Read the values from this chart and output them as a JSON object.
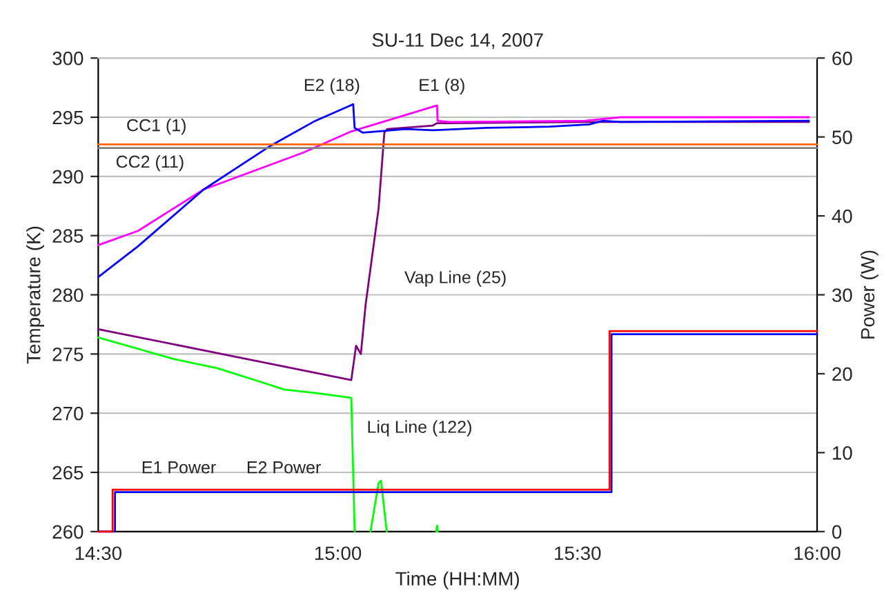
{
  "chart_data": {
    "type": "line",
    "title": "SU-11 Dec 14, 2007",
    "xlabel": "Time (HH:MM)",
    "ylabel": "Temperature (K)",
    "y2label": "Power (W)",
    "xlim": [
      14.5,
      16.0
    ],
    "xticks": [
      {
        "value": 14.5,
        "label": "14:30"
      },
      {
        "value": 15.0,
        "label": "15:00"
      },
      {
        "value": 15.5,
        "label": "15:30"
      },
      {
        "value": 16.0,
        "label": "16:00"
      }
    ],
    "ylim": [
      260,
      300
    ],
    "yticks": [
      260,
      265,
      270,
      275,
      280,
      285,
      290,
      295,
      300
    ],
    "y2lim": [
      0,
      60
    ],
    "y2ticks": [
      0,
      10,
      20,
      30,
      40,
      50,
      60
    ],
    "grid": "y",
    "legend": false,
    "marker": "none",
    "line_style": "solid",
    "series": [
      {
        "name": "CC1 (1)",
        "color": "#ff6600",
        "x": [
          14.5,
          14.75,
          15.0,
          15.25,
          15.5,
          15.75,
          16.0
        ],
        "values": [
          292.7,
          292.7,
          292.7,
          292.7,
          292.7,
          292.7,
          292.7
        ]
      },
      {
        "name": "CC2 (11)",
        "color": "#808080",
        "x": [
          14.5,
          14.75,
          15.0,
          15.25,
          15.5,
          15.75,
          16.0
        ],
        "values": [
          292.4,
          292.4,
          292.4,
          292.4,
          292.4,
          292.4,
          292.4
        ]
      },
      {
        "name": "E2 (18)",
        "color": "#0000ff",
        "x": [
          14.5,
          14.503,
          14.583,
          14.72,
          14.86,
          14.953,
          15.032,
          15.035,
          15.052,
          15.142,
          15.198,
          15.31,
          15.442,
          15.525,
          15.553,
          15.59,
          15.983
        ],
        "values": [
          281.5,
          281.6,
          284.1,
          288.9,
          292.6,
          294.7,
          296.1,
          294.1,
          293.7,
          294.0,
          293.9,
          294.1,
          294.2,
          294.4,
          294.7,
          294.6,
          294.7
        ]
      },
      {
        "name": "E1 (8)",
        "color": "#ff00ff",
        "x": [
          14.5,
          14.583,
          14.72,
          14.927,
          15.028,
          15.207,
          15.208,
          15.233,
          15.515,
          15.59,
          15.983
        ],
        "values": [
          284.2,
          285.4,
          288.9,
          292.0,
          293.8,
          296.0,
          294.7,
          294.6,
          294.7,
          295.0,
          295.0
        ]
      },
      {
        "name": "Vap Line (25)",
        "color": "#800080",
        "x": [
          14.5,
          15.028,
          15.038,
          15.048,
          15.058,
          15.085,
          15.097,
          15.103,
          15.198,
          15.207,
          15.235,
          15.515,
          15.983
        ],
        "values": [
          277.1,
          272.8,
          275.7,
          275.0,
          279.2,
          287.3,
          293.7,
          294.0,
          294.3,
          294.5,
          294.5,
          294.6,
          294.6
        ]
      },
      {
        "name": "Liq Line (122)",
        "color": "#00ff00",
        "x": [
          14.5,
          14.655,
          14.748,
          14.842,
          14.888,
          14.953,
          15.028,
          15.035,
          15.05,
          15.068,
          15.085,
          15.09,
          15.102,
          15.15,
          15.205,
          15.207,
          15.208
        ],
        "values": [
          276.4,
          274.6,
          273.8,
          272.6,
          272.0,
          271.7,
          271.3,
          260,
          null,
          260,
          264.1,
          264.3,
          260,
          null,
          260,
          260.5,
          260
        ]
      },
      {
        "name": "E1 Power",
        "color": "#ff0000",
        "axis": "y2",
        "x": [
          14.5,
          14.53,
          14.53,
          15.567,
          15.567,
          16.0
        ],
        "values": [
          0,
          0,
          5.3,
          5.3,
          25.4,
          25.4
        ]
      },
      {
        "name": "E2 Power",
        "color": "#0000ff",
        "axis": "y2",
        "x": [
          14.5,
          14.535,
          14.535,
          15.571,
          15.571,
          16.0
        ],
        "values": [
          0,
          0,
          5.0,
          5.0,
          25.0,
          25.0
        ]
      }
    ]
  }
}
